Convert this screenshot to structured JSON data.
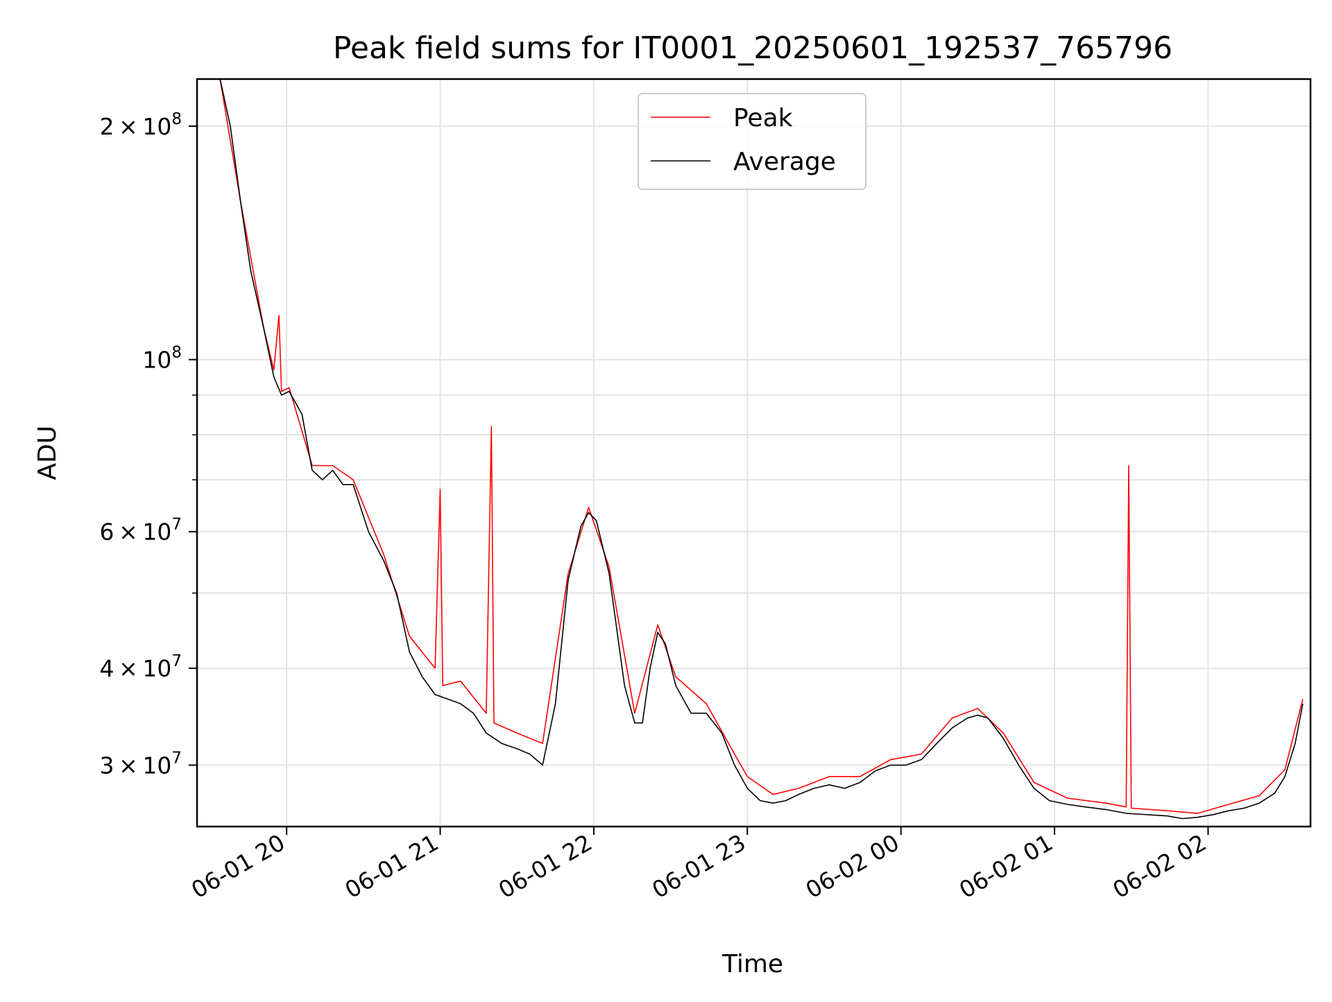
{
  "chart_data": {
    "type": "line",
    "title": "Peak field sums for IT0001_20250601_192537_765796",
    "xlabel": "Time",
    "ylabel": "ADU",
    "yscale": "log",
    "grid": true,
    "legend_position": "upper center",
    "xlim": [
      "2025-06-01 19:25",
      "2025-06-02 02:40"
    ],
    "ylim": [
      25000000,
      230000000
    ],
    "x_ticks": [
      {
        "value": "2025-06-01 20:00",
        "label": "06-01 20"
      },
      {
        "value": "2025-06-01 21:00",
        "label": "06-01 21"
      },
      {
        "value": "2025-06-01 22:00",
        "label": "06-01 22"
      },
      {
        "value": "2025-06-01 23:00",
        "label": "06-01 23"
      },
      {
        "value": "2025-06-02 00:00",
        "label": "06-02 00"
      },
      {
        "value": "2025-06-02 01:00",
        "label": "06-02 01"
      },
      {
        "value": "2025-06-02 02:00",
        "label": "06-02 02"
      }
    ],
    "y_ticks": [
      {
        "value": 30000000,
        "label": "3×10^7"
      },
      {
        "value": 40000000,
        "label": "4×10^7"
      },
      {
        "value": 60000000,
        "label": "6×10^7"
      },
      {
        "value": 100000000,
        "label": "10^8"
      },
      {
        "value": 200000000,
        "label": "2×10^8"
      }
    ],
    "y_minor_ticks": [
      50000000,
      70000000,
      80000000,
      90000000
    ],
    "series": [
      {
        "name": "Average",
        "color": "#000000",
        "points": [
          [
            "2025-06-01 19:25",
            230000000
          ],
          [
            "2025-06-01 19:31",
            230000000
          ],
          [
            "2025-06-01 19:34",
            230000000
          ],
          [
            "2025-06-01 19:38",
            200000000
          ],
          [
            "2025-06-01 19:42",
            160000000
          ],
          [
            "2025-06-01 19:46",
            130000000
          ],
          [
            "2025-06-01 19:51",
            110000000
          ],
          [
            "2025-06-01 19:55",
            95000000
          ],
          [
            "2025-06-01 19:58",
            90000000
          ],
          [
            "2025-06-01 20:01",
            91000000
          ],
          [
            "2025-06-01 20:06",
            85000000
          ],
          [
            "2025-06-01 20:10",
            72000000
          ],
          [
            "2025-06-01 20:14",
            70000000
          ],
          [
            "2025-06-01 20:18",
            72000000
          ],
          [
            "2025-06-01 20:22",
            69000000
          ],
          [
            "2025-06-01 20:26",
            69000000
          ],
          [
            "2025-06-01 20:32",
            60000000
          ],
          [
            "2025-06-01 20:38",
            55000000
          ],
          [
            "2025-06-01 20:43",
            50000000
          ],
          [
            "2025-06-01 20:48",
            42000000
          ],
          [
            "2025-06-01 20:53",
            39000000
          ],
          [
            "2025-06-01 20:58",
            37000000
          ],
          [
            "2025-06-01 21:03",
            36500000
          ],
          [
            "2025-06-01 21:08",
            36000000
          ],
          [
            "2025-06-01 21:13",
            35000000
          ],
          [
            "2025-06-01 21:18",
            33000000
          ],
          [
            "2025-06-01 21:24",
            32000000
          ],
          [
            "2025-06-01 21:30",
            31500000
          ],
          [
            "2025-06-01 21:35",
            31000000
          ],
          [
            "2025-06-01 21:40",
            30000000
          ],
          [
            "2025-06-01 21:45",
            36000000
          ],
          [
            "2025-06-01 21:50",
            52000000
          ],
          [
            "2025-06-01 21:55",
            61000000
          ],
          [
            "2025-06-01 21:58",
            63500000
          ],
          [
            "2025-06-01 22:01",
            62000000
          ],
          [
            "2025-06-01 22:06",
            53000000
          ],
          [
            "2025-06-01 22:12",
            38000000
          ],
          [
            "2025-06-01 22:16",
            34000000
          ],
          [
            "2025-06-01 22:19",
            34000000
          ],
          [
            "2025-06-01 22:22",
            40000000
          ],
          [
            "2025-06-01 22:25",
            44500000
          ],
          [
            "2025-06-01 22:28",
            43000000
          ],
          [
            "2025-06-01 22:32",
            38000000
          ],
          [
            "2025-06-01 22:38",
            35000000
          ],
          [
            "2025-06-01 22:44",
            35000000
          ],
          [
            "2025-06-01 22:50",
            33000000
          ],
          [
            "2025-06-01 22:55",
            30000000
          ],
          [
            "2025-06-01 23:00",
            28000000
          ],
          [
            "2025-06-01 23:05",
            27000000
          ],
          [
            "2025-06-01 23:10",
            26800000
          ],
          [
            "2025-06-01 23:15",
            27000000
          ],
          [
            "2025-06-01 23:20",
            27500000
          ],
          [
            "2025-06-01 23:26",
            28000000
          ],
          [
            "2025-06-01 23:32",
            28300000
          ],
          [
            "2025-06-01 23:38",
            28000000
          ],
          [
            "2025-06-01 23:44",
            28500000
          ],
          [
            "2025-06-01 23:50",
            29500000
          ],
          [
            "2025-06-01 23:56",
            30000000
          ],
          [
            "2025-06-02 00:02",
            30000000
          ],
          [
            "2025-06-02 00:08",
            30500000
          ],
          [
            "2025-06-02 00:14",
            32000000
          ],
          [
            "2025-06-02 00:20",
            33500000
          ],
          [
            "2025-06-02 00:26",
            34500000
          ],
          [
            "2025-06-02 00:30",
            34800000
          ],
          [
            "2025-06-02 00:34",
            34500000
          ],
          [
            "2025-06-02 00:40",
            32500000
          ],
          [
            "2025-06-02 00:46",
            30000000
          ],
          [
            "2025-06-02 00:52",
            28000000
          ],
          [
            "2025-06-02 00:58",
            27000000
          ],
          [
            "2025-06-02 01:05",
            26700000
          ],
          [
            "2025-06-02 01:12",
            26500000
          ],
          [
            "2025-06-02 01:20",
            26300000
          ],
          [
            "2025-06-02 01:28",
            26000000
          ],
          [
            "2025-06-02 01:36",
            25900000
          ],
          [
            "2025-06-02 01:44",
            25800000
          ],
          [
            "2025-06-02 01:50",
            25600000
          ],
          [
            "2025-06-02 01:56",
            25700000
          ],
          [
            "2025-06-02 02:02",
            25900000
          ],
          [
            "2025-06-02 02:08",
            26200000
          ],
          [
            "2025-06-02 02:14",
            26400000
          ],
          [
            "2025-06-02 02:20",
            26800000
          ],
          [
            "2025-06-02 02:26",
            27600000
          ],
          [
            "2025-06-02 02:30",
            29000000
          ],
          [
            "2025-06-02 02:34",
            32000000
          ],
          [
            "2025-06-02 02:37",
            36000000
          ]
        ]
      },
      {
        "name": "Peak",
        "color": "#ff0000",
        "points": [
          [
            "2025-06-01 19:25",
            230000000
          ],
          [
            "2025-06-01 19:34",
            230000000
          ],
          [
            "2025-06-01 19:42",
            160000000
          ],
          [
            "2025-06-01 19:51",
            110000000
          ],
          [
            "2025-06-01 19:55",
            97000000
          ],
          [
            "2025-06-01 19:57",
            114000000
          ],
          [
            "2025-06-01 19:58",
            91000000
          ],
          [
            "2025-06-01 20:01",
            92000000
          ],
          [
            "2025-06-01 20:10",
            73000000
          ],
          [
            "2025-06-01 20:18",
            73000000
          ],
          [
            "2025-06-01 20:26",
            70000000
          ],
          [
            "2025-06-01 20:38",
            56000000
          ],
          [
            "2025-06-01 20:48",
            44000000
          ],
          [
            "2025-06-01 20:58",
            40000000
          ],
          [
            "2025-06-01 21:00",
            68000000
          ],
          [
            "2025-06-01 21:01",
            38000000
          ],
          [
            "2025-06-01 21:08",
            38500000
          ],
          [
            "2025-06-01 21:18",
            35000000
          ],
          [
            "2025-06-01 21:20",
            82000000
          ],
          [
            "2025-06-01 21:21",
            34000000
          ],
          [
            "2025-06-01 21:30",
            33000000
          ],
          [
            "2025-06-01 21:40",
            32000000
          ],
          [
            "2025-06-01 21:50",
            53000000
          ],
          [
            "2025-06-01 21:58",
            64500000
          ],
          [
            "2025-06-01 22:06",
            54000000
          ],
          [
            "2025-06-01 22:16",
            35000000
          ],
          [
            "2025-06-01 22:25",
            45500000
          ],
          [
            "2025-06-01 22:32",
            39000000
          ],
          [
            "2025-06-01 22:44",
            36000000
          ],
          [
            "2025-06-01 22:55",
            31000000
          ],
          [
            "2025-06-01 23:00",
            29000000
          ],
          [
            "2025-06-01 23:10",
            27500000
          ],
          [
            "2025-06-01 23:20",
            28000000
          ],
          [
            "2025-06-01 23:32",
            29000000
          ],
          [
            "2025-06-01 23:44",
            29000000
          ],
          [
            "2025-06-01 23:56",
            30500000
          ],
          [
            "2025-06-02 00:08",
            31000000
          ],
          [
            "2025-06-02 00:20",
            34500000
          ],
          [
            "2025-06-02 00:30",
            35500000
          ],
          [
            "2025-06-02 00:40",
            33000000
          ],
          [
            "2025-06-02 00:52",
            28500000
          ],
          [
            "2025-06-02 01:05",
            27200000
          ],
          [
            "2025-06-02 01:20",
            26800000
          ],
          [
            "2025-06-02 01:28",
            26500000
          ],
          [
            "2025-06-02 01:29",
            73000000
          ],
          [
            "2025-06-02 01:30",
            26400000
          ],
          [
            "2025-06-02 01:44",
            26200000
          ],
          [
            "2025-06-02 01:56",
            26000000
          ],
          [
            "2025-06-02 02:08",
            26700000
          ],
          [
            "2025-06-02 02:20",
            27400000
          ],
          [
            "2025-06-02 02:30",
            29600000
          ],
          [
            "2025-06-02 02:37",
            36500000
          ]
        ]
      }
    ]
  }
}
